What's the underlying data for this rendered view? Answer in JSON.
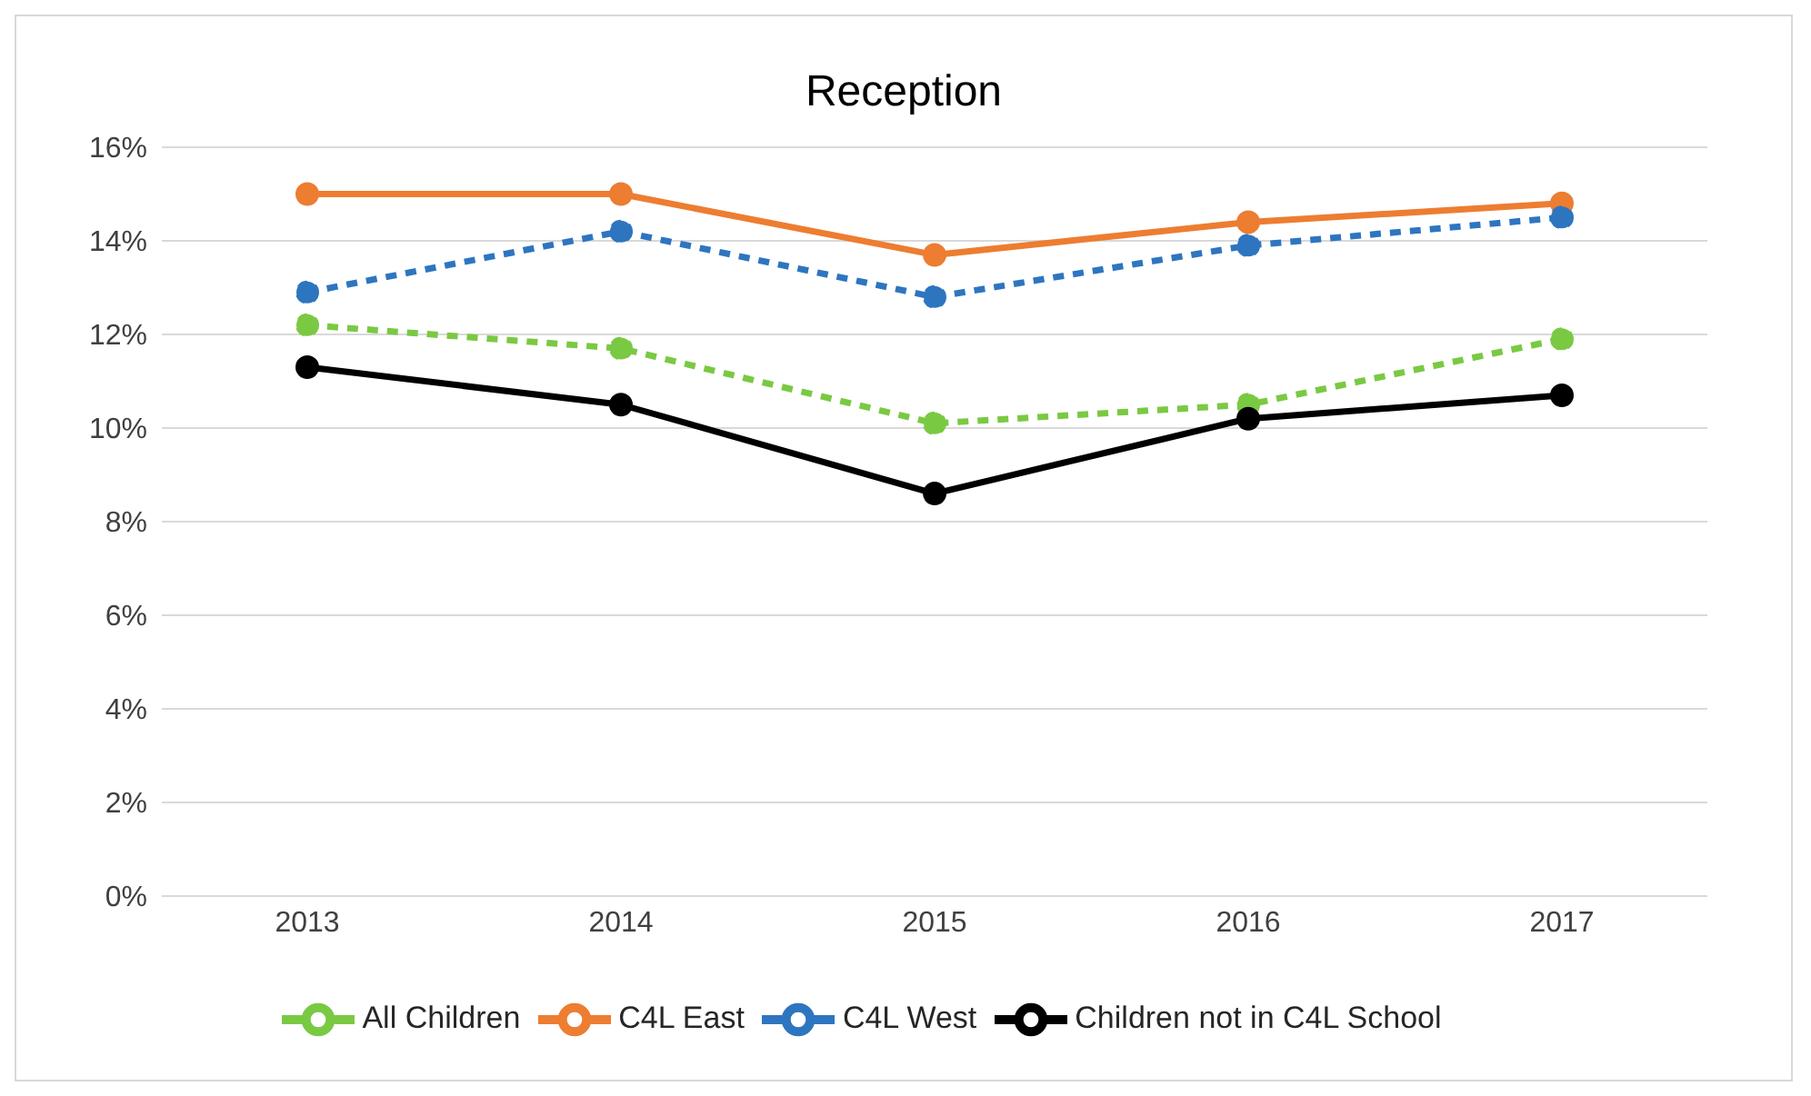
{
  "chart_data": {
    "type": "line",
    "title": "Reception",
    "categories": [
      "2013",
      "2014",
      "2015",
      "2016",
      "2017"
    ],
    "series": [
      {
        "name": "All Children",
        "color": "#7ac943",
        "line_style": "dashed",
        "values": [
          12.2,
          11.7,
          10.1,
          10.5,
          11.9
        ]
      },
      {
        "name": "C4L East",
        "color": "#ed7d31",
        "line_style": "solid",
        "values": [
          15.0,
          15.0,
          13.7,
          14.4,
          14.8
        ]
      },
      {
        "name": "C4L West",
        "color": "#2e75c0",
        "line_style": "dashed",
        "values": [
          12.9,
          14.2,
          12.8,
          13.9,
          14.5
        ]
      },
      {
        "name": "Children not in C4L School",
        "color": "#000000",
        "line_style": "solid",
        "values": [
          11.3,
          10.5,
          8.6,
          10.2,
          10.7
        ]
      }
    ],
    "ylim": [
      0,
      16
    ],
    "yticks": [
      {
        "value": 0,
        "label": "0%"
      },
      {
        "value": 2,
        "label": "2%"
      },
      {
        "value": 4,
        "label": "4%"
      },
      {
        "value": 6,
        "label": "6%"
      },
      {
        "value": 8,
        "label": "8%"
      },
      {
        "value": 10,
        "label": "10%"
      },
      {
        "value": 12,
        "label": "12%"
      },
      {
        "value": 14,
        "label": "14%"
      },
      {
        "value": 16,
        "label": "16%"
      }
    ],
    "grid": "y",
    "legend": "bottom",
    "marker": "circle"
  }
}
